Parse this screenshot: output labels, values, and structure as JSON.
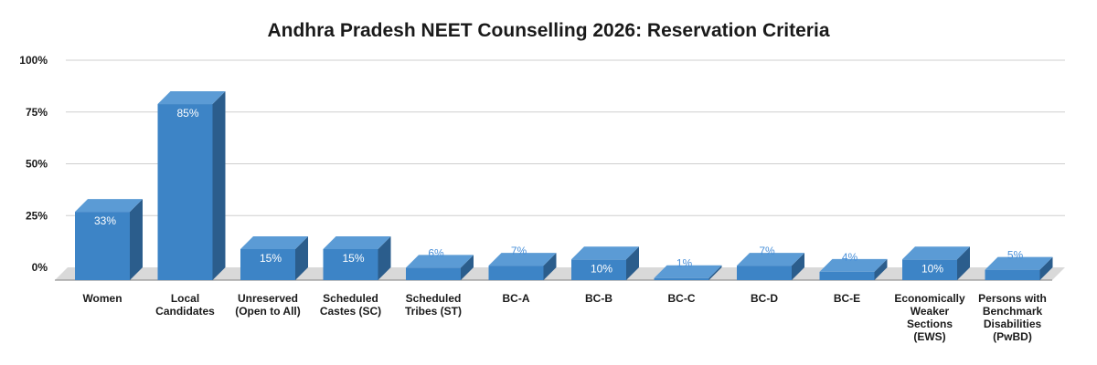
{
  "chart_data": {
    "type": "bar",
    "title": "Andhra Pradesh NEET Counselling 2026: Reservation Criteria",
    "xlabel": "",
    "ylabel": "",
    "ylim": [
      0,
      100
    ],
    "yticks": [
      "100%",
      "75%",
      "50%",
      "25%",
      "0%"
    ],
    "grid": true,
    "style": "3d-bar",
    "colors": {
      "bar_front": "#3d84c6",
      "bar_side": "#2b5d8c",
      "bar_top": "#5b9bd5",
      "floor": "#d9d9d9",
      "label_inside": "#ffffff",
      "label_above": "#4a90d9"
    },
    "categories": [
      [
        "Women"
      ],
      [
        "Local",
        "Candidates"
      ],
      [
        "Unreserved",
        "(Open to All)"
      ],
      [
        "Scheduled",
        "Castes (SC)"
      ],
      [
        "Scheduled",
        "Tribes (ST)"
      ],
      [
        "BC-A"
      ],
      [
        "BC-B"
      ],
      [
        "BC-C"
      ],
      [
        "BC-D"
      ],
      [
        "BC-E"
      ],
      [
        "Economically",
        "Weaker",
        "Sections",
        "(EWS)"
      ],
      [
        "Persons with",
        "Benchmark",
        "Disabilities",
        "(PwBD)"
      ]
    ],
    "values": [
      33,
      85,
      15,
      15,
      6,
      7,
      10,
      1,
      7,
      4,
      10,
      5
    ],
    "data_labels": [
      "33%",
      "85%",
      "15%",
      "15%",
      "6%",
      "7%",
      "10%",
      "1%",
      "7%",
      "4%",
      "10%",
      "5%"
    ]
  }
}
